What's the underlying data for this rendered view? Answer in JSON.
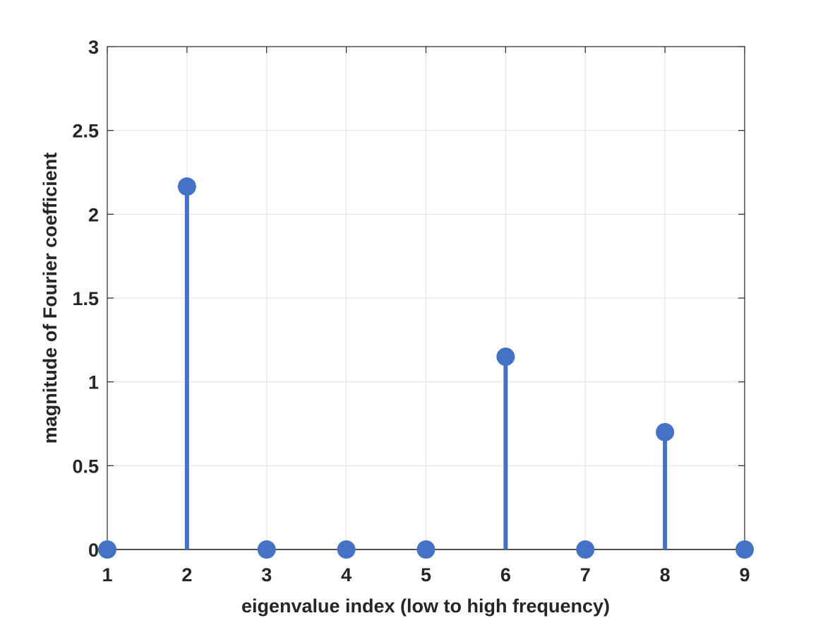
{
  "chart_data": {
    "type": "stem",
    "title": "",
    "xlabel": "eigenvalue index (low to high frequency)",
    "ylabel": "magnitude of Fourier coefficient",
    "x": [
      1,
      2,
      3,
      4,
      5,
      6,
      7,
      8,
      9
    ],
    "values": [
      0,
      2.165,
      0,
      0,
      0,
      1.15,
      0,
      0.7,
      0
    ],
    "xlim": [
      1,
      9
    ],
    "ylim": [
      0,
      3
    ],
    "xticks": [
      "1",
      "2",
      "3",
      "4",
      "5",
      "6",
      "7",
      "8",
      "9"
    ],
    "yticks": [
      {
        "value": 0,
        "label": "0"
      },
      {
        "value": 0.5,
        "label": "0.5"
      },
      {
        "value": 1,
        "label": "1"
      },
      {
        "value": 1.5,
        "label": "1.5"
      },
      {
        "value": 2,
        "label": "2"
      },
      {
        "value": 2.5,
        "label": "2.5"
      },
      {
        "value": 3,
        "label": "3"
      }
    ],
    "grid": true,
    "color": "#4472c4"
  }
}
